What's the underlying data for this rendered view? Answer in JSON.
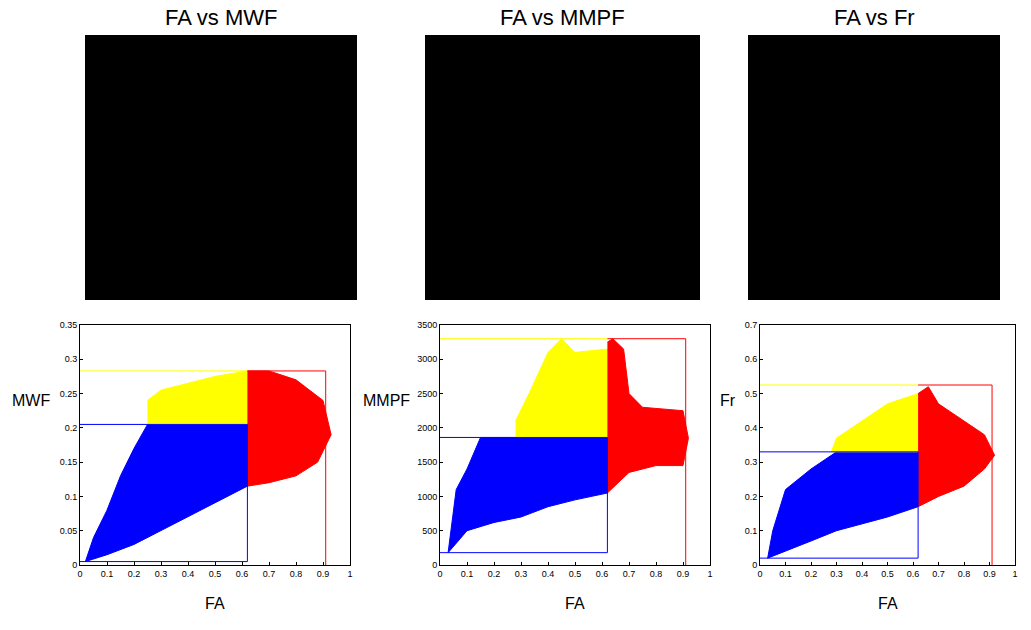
{
  "chart_data": [
    {
      "type": "scatter",
      "title": "FA vs MWF",
      "x_label": "FA",
      "y_label": "MWF",
      "xlim": [
        0,
        1
      ],
      "xticks": [
        0,
        0.1,
        0.2,
        0.3,
        0.4,
        0.5,
        0.6,
        0.7,
        0.8,
        0.9,
        1
      ],
      "ylim": [
        0,
        0.35
      ],
      "yticks": [
        0,
        0.05,
        0.1,
        0.15,
        0.2,
        0.25,
        0.3,
        0.35
      ],
      "series": [
        {
          "type": "area",
          "color": "#0000ff",
          "x": [
            0.02,
            0.1,
            0.2,
            0.3,
            0.4,
            0.5,
            0.62,
            0.62,
            0.25,
            0.2,
            0.15,
            0.1,
            0.05,
            0.02
          ],
          "y": [
            0.005,
            0.015,
            0.03,
            0.05,
            0.07,
            0.09,
            0.115,
            0.205,
            0.205,
            0.17,
            0.13,
            0.08,
            0.04,
            0.005
          ]
        },
        {
          "type": "area",
          "color": "#ffff00",
          "x": [
            0.25,
            0.62,
            0.62,
            0.5,
            0.4,
            0.3,
            0.25
          ],
          "y": [
            0.205,
            0.205,
            0.283,
            0.275,
            0.265,
            0.255,
            0.24
          ]
        },
        {
          "type": "area",
          "color": "#ff0000",
          "x": [
            0.62,
            0.7,
            0.8,
            0.88,
            0.93,
            0.9,
            0.8,
            0.7,
            0.62
          ],
          "y": [
            0.115,
            0.12,
            0.13,
            0.15,
            0.19,
            0.24,
            0.27,
            0.283,
            0.283
          ]
        },
        {
          "type": "line",
          "color": "#0000ff",
          "x": [
            0,
            0.62,
            0.62,
            0
          ],
          "y": [
            0.205,
            0.205,
            0.005,
            0.005
          ]
        },
        {
          "type": "line",
          "color": "#ffff00",
          "x": [
            0,
            0.62
          ],
          "y": [
            0.283,
            0.283
          ]
        },
        {
          "type": "line",
          "color": "#ff0000",
          "x": [
            0.62,
            0.91,
            0.91
          ],
          "y": [
            0.283,
            0.283,
            0
          ]
        }
      ]
    },
    {
      "type": "scatter",
      "title": "FA vs MMPF",
      "x_label": "FA",
      "y_label": "MMPF",
      "xlim": [
        0,
        1
      ],
      "xticks": [
        0,
        0.1,
        0.2,
        0.3,
        0.4,
        0.5,
        0.6,
        0.7,
        0.8,
        0.9,
        1
      ],
      "ylim": [
        0,
        3500
      ],
      "yticks": [
        0,
        500,
        1000,
        1500,
        2000,
        2500,
        3000,
        3500
      ],
      "series": [
        {
          "type": "area",
          "color": "#0000ff",
          "x": [
            0.03,
            0.1,
            0.2,
            0.3,
            0.4,
            0.5,
            0.62,
            0.62,
            0.15,
            0.1,
            0.06,
            0.03
          ],
          "y": [
            180,
            500,
            620,
            700,
            850,
            950,
            1050,
            1860,
            1860,
            1400,
            1100,
            180
          ]
        },
        {
          "type": "area",
          "color": "#ffff00",
          "x": [
            0.28,
            0.62,
            0.62,
            0.5,
            0.45,
            0.4,
            0.33,
            0.28
          ],
          "y": [
            1860,
            1860,
            3150,
            3100,
            3300,
            3100,
            2500,
            2100
          ]
        },
        {
          "type": "area",
          "color": "#ff0000",
          "x": [
            0.62,
            0.7,
            0.8,
            0.9,
            0.92,
            0.9,
            0.75,
            0.7,
            0.68,
            0.64,
            0.62
          ],
          "y": [
            1050,
            1350,
            1450,
            1450,
            1850,
            2250,
            2300,
            2500,
            3150,
            3300,
            3250
          ]
        },
        {
          "type": "line",
          "color": "#0000ff",
          "x": [
            0,
            0.62,
            0.62,
            0
          ],
          "y": [
            1860,
            1860,
            180,
            180
          ]
        },
        {
          "type": "line",
          "color": "#ffff00",
          "x": [
            0,
            0.62
          ],
          "y": [
            3300,
            3300
          ]
        },
        {
          "type": "line",
          "color": "#ff0000",
          "x": [
            0.62,
            0.91,
            0.91
          ],
          "y": [
            3300,
            3300,
            0
          ]
        }
      ]
    },
    {
      "type": "scatter",
      "title": "FA vs Fr",
      "x_label": "FA",
      "y_label": "Fr",
      "xlim": [
        0,
        1
      ],
      "xticks": [
        0,
        0.1,
        0.2,
        0.3,
        0.4,
        0.5,
        0.6,
        0.7,
        0.8,
        0.9,
        1
      ],
      "ylim": [
        0,
        0.7
      ],
      "yticks": [
        0,
        0.1,
        0.2,
        0.3,
        0.4,
        0.5,
        0.6,
        0.7
      ],
      "series": [
        {
          "type": "area",
          "color": "#0000ff",
          "x": [
            0.03,
            0.1,
            0.2,
            0.3,
            0.4,
            0.5,
            0.62,
            0.62,
            0.3,
            0.2,
            0.1,
            0.05,
            0.03
          ],
          "y": [
            0.02,
            0.04,
            0.07,
            0.1,
            0.12,
            0.14,
            0.17,
            0.33,
            0.33,
            0.28,
            0.22,
            0.1,
            0.02
          ]
        },
        {
          "type": "area",
          "color": "#ffff00",
          "x": [
            0.28,
            0.62,
            0.62,
            0.5,
            0.4,
            0.3,
            0.28
          ],
          "y": [
            0.33,
            0.33,
            0.5,
            0.47,
            0.42,
            0.37,
            0.33
          ]
        },
        {
          "type": "area",
          "color": "#ff0000",
          "x": [
            0.62,
            0.7,
            0.8,
            0.88,
            0.92,
            0.88,
            0.8,
            0.7,
            0.66,
            0.62
          ],
          "y": [
            0.17,
            0.2,
            0.23,
            0.28,
            0.32,
            0.38,
            0.42,
            0.47,
            0.52,
            0.5
          ]
        },
        {
          "type": "line",
          "color": "#0000ff",
          "x": [
            0,
            0.62,
            0.62,
            0
          ],
          "y": [
            0.33,
            0.33,
            0.02,
            0.02
          ]
        },
        {
          "type": "line",
          "color": "#ffff00",
          "x": [
            0,
            0.62
          ],
          "y": [
            0.525,
            0.525
          ]
        },
        {
          "type": "line",
          "color": "#ff0000",
          "x": [
            0.62,
            0.91,
            0.91
          ],
          "y": [
            0.525,
            0.525,
            0
          ]
        }
      ]
    }
  ]
}
